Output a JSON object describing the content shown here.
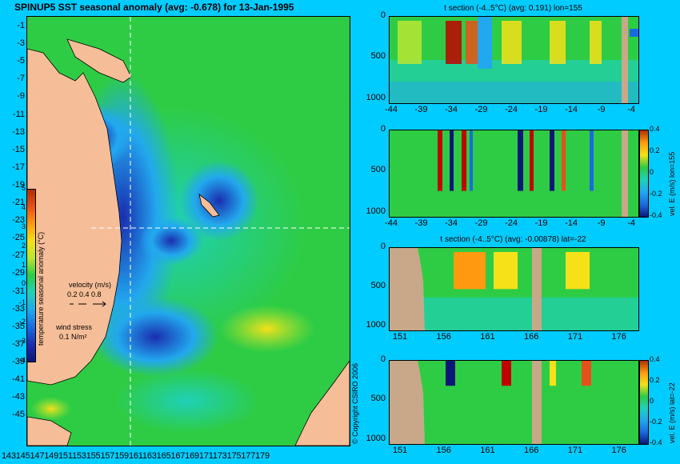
{
  "main_title": "SPINUP5 SST seasonal anomaly (avg: -0.678) for 13-Jan-1995",
  "map": {
    "y_ticks": [
      "-1",
      "-3",
      "-5",
      "-7",
      "-9",
      "-11",
      "-13",
      "-15",
      "-17",
      "-19",
      "-21",
      "-23",
      "-25",
      "-27",
      "-29",
      "-31",
      "-33",
      "-35",
      "-37",
      "-39",
      "-41",
      "-43",
      "-45"
    ],
    "x_tick_text": "14314514714915115315515715916116316516716917117317517717",
    "x_tick_text_end": "9",
    "colorbar": {
      "ticks": [
        "5",
        "4",
        "3",
        "2",
        "1",
        "0",
        "-1",
        "-2",
        "-3",
        "-4"
      ],
      "label": "temperature seasonal anomaly (°C)",
      "colors": [
        "#b03000",
        "#e8501a",
        "#ff9a10",
        "#f6e018",
        "#b8e632",
        "#2ecc44",
        "#1fd0b8",
        "#22a8ee",
        "#1c6ae0",
        "#1a2eb0",
        "#0c1678"
      ]
    },
    "velocity_label": "velocity (m/s)",
    "velocity_scale": "0.2 0.4 0.8",
    "wind_label": "wind stress",
    "wind_scale": "0.1 N/m²",
    "colors": {
      "land": "#f5be98",
      "ocean_base": "#2ecc44"
    }
  },
  "copyright": "© Copyright CSIRO 2006",
  "panels": [
    {
      "title": "t section (-4..5°C) (avg: 0.191) lon=155",
      "x_ticks": [
        "-44",
        "-39",
        "-34",
        "-29",
        "-24",
        "-19",
        "-14",
        "-9",
        "-4"
      ],
      "y_ticks": [
        "0",
        "500",
        "1000"
      ]
    },
    {
      "title": "",
      "x_ticks": [
        "-44",
        "-39",
        "-34",
        "-29",
        "-24",
        "-19",
        "-14",
        "-9",
        "-4"
      ],
      "y_ticks": [
        "0",
        "500",
        "1000"
      ],
      "cbar_ticks": [
        "0.4",
        "0.2",
        "0",
        "-0.2",
        "-0.4"
      ],
      "cbar_label": "vel. E (m/s) lon=155"
    },
    {
      "title": "t section (-4..5°C) (avg: -0.00878) lat=-22",
      "x_ticks": [
        "151",
        "156",
        "161",
        "166",
        "171",
        "176"
      ],
      "y_ticks": [
        "0",
        "500",
        "1000"
      ]
    },
    {
      "title": "",
      "x_ticks": [
        "151",
        "156",
        "161",
        "166",
        "171",
        "176"
      ],
      "y_ticks": [
        "0",
        "500",
        "1000"
      ],
      "cbar_ticks": [
        "0.4",
        "0.2",
        "0",
        "-0.2",
        "-0.4"
      ],
      "cbar_label": "vel. E (m/s) lat=-22"
    }
  ]
}
